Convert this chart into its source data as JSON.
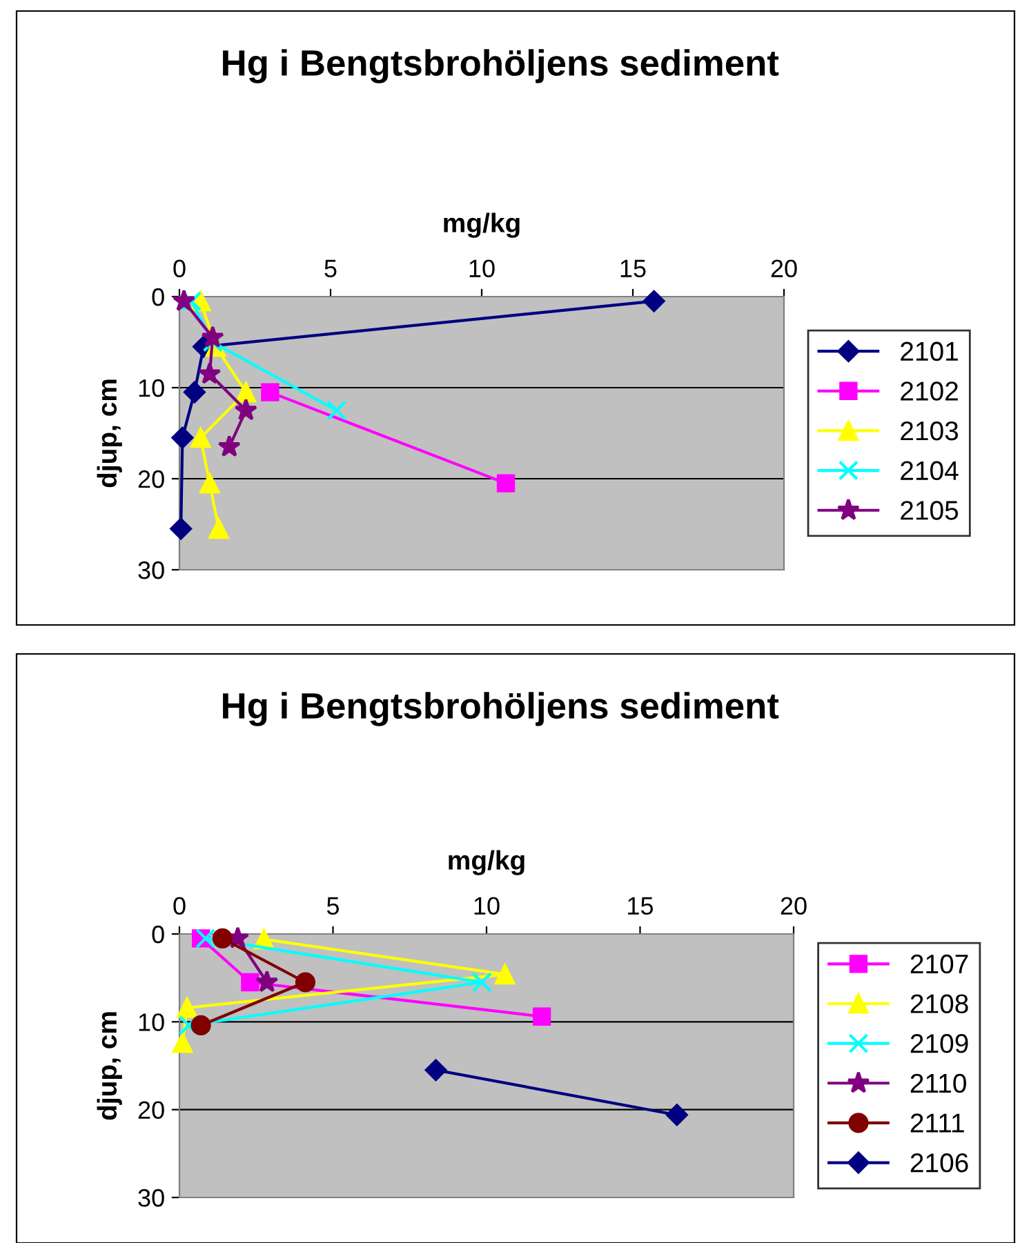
{
  "chart_data": [
    {
      "type": "line",
      "title": "Hg i Bengtsbrohöljens sediment",
      "xlabel": "mg/kg",
      "ylabel": "djup, cm",
      "xlim": [
        0,
        20
      ],
      "xticks": [
        0,
        5,
        10,
        15,
        20
      ],
      "ylim": [
        30,
        0
      ],
      "yticks": [
        0,
        10,
        20,
        30
      ],
      "grid": "y",
      "legend": "right",
      "series": [
        {
          "name": "2101",
          "color": "#000080",
          "marker": "diamond",
          "x": [
            15.7,
            0.8,
            0.5,
            0.1,
            0.05
          ],
          "values": [
            0.5,
            5.5,
            10.5,
            15.5,
            25.5
          ]
        },
        {
          "name": "2102",
          "color": "#ff00ff",
          "marker": "square",
          "x": [
            3.0,
            10.8
          ],
          "values": [
            10.5,
            20.5
          ]
        },
        {
          "name": "2103",
          "color": "#ffff00",
          "marker": "triangle",
          "x": [
            0.7,
            1.2,
            2.2,
            0.7,
            1.0,
            1.3
          ],
          "values": [
            0.5,
            5.5,
            10.5,
            15.5,
            20.5,
            25.5
          ]
        },
        {
          "name": "2104",
          "color": "#00ffff",
          "marker": "cross",
          "x": [
            0.4,
            1.1,
            5.2
          ],
          "values": [
            0.5,
            5,
            12.5
          ]
        },
        {
          "name": "2105",
          "color": "#800080",
          "marker": "star",
          "x": [
            0.15,
            1.1,
            1.0,
            2.2,
            1.65
          ],
          "values": [
            0.5,
            4.5,
            8.5,
            12.5,
            16.5
          ]
        }
      ]
    },
    {
      "type": "line",
      "title": "Hg i Bengtsbrohöljens sediment",
      "xlabel": "mg/kg",
      "ylabel": "djup, cm",
      "xlim": [
        0,
        20
      ],
      "xticks": [
        0,
        5,
        10,
        15,
        20
      ],
      "ylim": [
        30,
        0
      ],
      "yticks": [
        0,
        10,
        20,
        30
      ],
      "grid": "y",
      "legend": "right",
      "series": [
        {
          "name": "2107",
          "color": "#ff00ff",
          "marker": "square",
          "x": [
            0.7,
            2.3,
            11.8
          ],
          "values": [
            0.5,
            5.5,
            9.4
          ]
        },
        {
          "name": "2108",
          "color": "#ffff00",
          "marker": "triangle",
          "x": [
            2.75,
            10.6,
            0.25,
            0.1
          ],
          "values": [
            0.6,
            4.6,
            8.4,
            12.4
          ]
        },
        {
          "name": "2109",
          "color": "#00ffff",
          "marker": "cross",
          "x": [
            0.85,
            9.85,
            0.3
          ],
          "values": [
            0.5,
            5.5,
            10.4
          ]
        },
        {
          "name": "2110",
          "color": "#800080",
          "marker": "star",
          "x": [
            1.9,
            2.85
          ],
          "values": [
            0.5,
            5.5
          ]
        },
        {
          "name": "2111",
          "color": "#800000",
          "marker": "circle",
          "x": [
            1.4,
            4.1,
            0.7
          ],
          "values": [
            0.5,
            5.5,
            10.4
          ]
        },
        {
          "name": "2106",
          "color": "#000080",
          "marker": "diamond",
          "x": [
            8.35,
            16.2
          ],
          "values": [
            15.5,
            20.6
          ]
        }
      ]
    }
  ]
}
